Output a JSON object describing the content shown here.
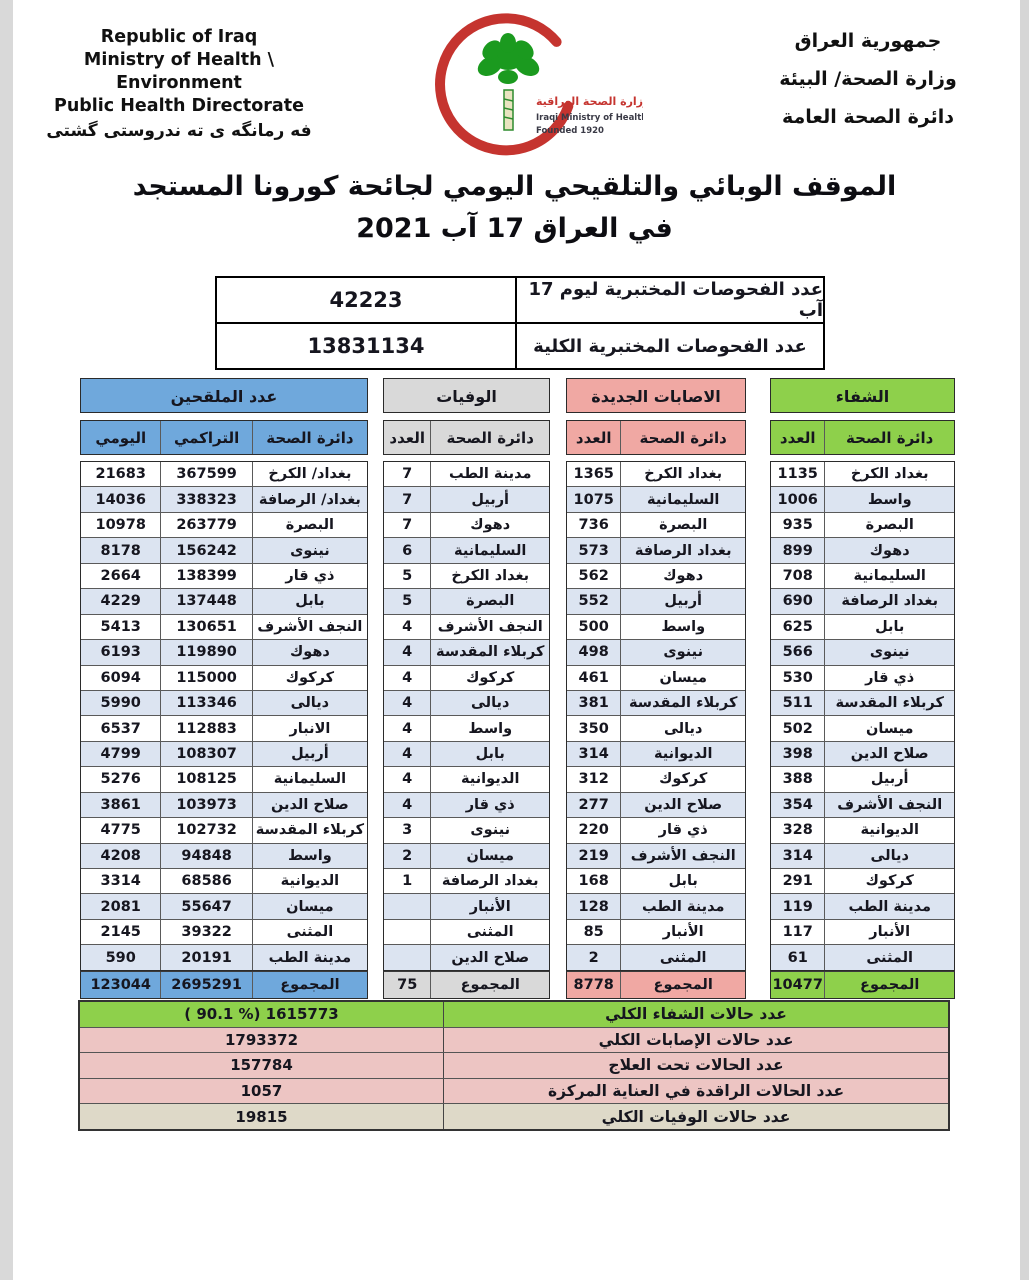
{
  "header_left": {
    "line1": "Republic of Iraq",
    "line2": "Ministry of Health \\ Environment",
    "line3": "Public Health Directorate",
    "line4": "فه رمانگه ی ته ندروستی گشتی"
  },
  "header_right": {
    "line1": "جمهورية العراق",
    "line2": "وزارة الصحة/ البيئة",
    "line3": "دائرة الصحة العامة"
  },
  "logo": {
    "arabic": "وزارة الصحة العراقية",
    "english": "Iraqi Ministry of Health",
    "founded": "Founded 1920"
  },
  "title": {
    "line1": "الموقف الوبائي والتلقيحي اليومي لجائحة كورونا المستجد",
    "line2": "في العراق  17  آب 2021"
  },
  "tests": {
    "rows": [
      {
        "label": "عدد الفحوصات المختبرية  ليوم 17 آب",
        "value": "42223"
      },
      {
        "label": "عدد الفحوصات المختبرية الكلية",
        "value": "13831134"
      }
    ]
  },
  "colors": {
    "blue": "#6fa8dc",
    "light_blue": "#dce4f1",
    "gray": "#d9d9d9",
    "pink": "#f0a8a3",
    "green": "#8ed04b",
    "summary_pink": "#edc5c3",
    "summary_tan": "#ded9c8",
    "crescent_red": "#c5342f",
    "palm_green": "#1b9a1f"
  },
  "tables": {
    "vaccinated": {
      "title": "عدد الملقحين",
      "theme": "blue",
      "columns": [
        "اليومي",
        "التراكمي",
        "دائرة الصحة"
      ],
      "rows": [
        [
          "21683",
          "367599",
          "بغداد/ الكرخ"
        ],
        [
          "14036",
          "338323",
          "بغداد/ الرصافة"
        ],
        [
          "10978",
          "263779",
          "البصرة"
        ],
        [
          "8178",
          "156242",
          "نينوى"
        ],
        [
          "2664",
          "138399",
          "ذي قار"
        ],
        [
          "4229",
          "137448",
          "بابل"
        ],
        [
          "5413",
          "130651",
          "النجف الأشرف"
        ],
        [
          "6193",
          "119890",
          "دهوك"
        ],
        [
          "6094",
          "115000",
          "كركوك"
        ],
        [
          "5990",
          "113346",
          "ديالى"
        ],
        [
          "6537",
          "112883",
          "الانبار"
        ],
        [
          "4799",
          "108307",
          "أربيل"
        ],
        [
          "5276",
          "108125",
          "السليمانية"
        ],
        [
          "3861",
          "103973",
          "صلاح الدين"
        ],
        [
          "4775",
          "102732",
          "كربلاء المقدسة"
        ],
        [
          "4208",
          "94848",
          "واسط"
        ],
        [
          "3314",
          "68586",
          "الديوانية"
        ],
        [
          "2081",
          "55647",
          "ميسان"
        ],
        [
          "2145",
          "39322",
          "المثنى"
        ],
        [
          "590",
          "20191",
          "مدينة الطب"
        ]
      ],
      "total": [
        "123044",
        "2695291",
        "المجموع"
      ]
    },
    "deaths": {
      "title": "الوفيات",
      "theme": "gray",
      "columns": [
        "العدد",
        "دائرة الصحة"
      ],
      "rows": [
        [
          "7",
          "مدينة الطب"
        ],
        [
          "7",
          "أربيل"
        ],
        [
          "7",
          "دهوك"
        ],
        [
          "6",
          "السليمانية"
        ],
        [
          "5",
          "بغداد الكرخ"
        ],
        [
          "5",
          "البصرة"
        ],
        [
          "4",
          "النجف الأشرف"
        ],
        [
          "4",
          "كربلاء المقدسة"
        ],
        [
          "4",
          "كركوك"
        ],
        [
          "4",
          "ديالى"
        ],
        [
          "4",
          "واسط"
        ],
        [
          "4",
          "بابل"
        ],
        [
          "4",
          "الديوانية"
        ],
        [
          "4",
          "ذي قار"
        ],
        [
          "3",
          "نينوى"
        ],
        [
          "2",
          "ميسان"
        ],
        [
          "1",
          "بغداد الرصافة"
        ],
        [
          "",
          "الأنبار"
        ],
        [
          "",
          "المثنى"
        ],
        [
          "",
          "صلاح الدين"
        ]
      ],
      "total": [
        "75",
        "المجموع"
      ]
    },
    "new_cases": {
      "title": "الاصابات الجديدة",
      "theme": "pink",
      "columns": [
        "العدد",
        "دائرة الصحة"
      ],
      "rows": [
        [
          "1365",
          "بغداد الكرخ"
        ],
        [
          "1075",
          "السليمانية"
        ],
        [
          "736",
          "البصرة"
        ],
        [
          "573",
          "بغداد الرصافة"
        ],
        [
          "562",
          "دهوك"
        ],
        [
          "552",
          "أربيل"
        ],
        [
          "500",
          "واسط"
        ],
        [
          "498",
          "نينوى"
        ],
        [
          "461",
          "ميسان"
        ],
        [
          "381",
          "كربلاء المقدسة"
        ],
        [
          "350",
          "ديالى"
        ],
        [
          "314",
          "الديوانية"
        ],
        [
          "312",
          "كركوك"
        ],
        [
          "277",
          "صلاح الدين"
        ],
        [
          "220",
          "ذي قار"
        ],
        [
          "219",
          "النجف الأشرف"
        ],
        [
          "168",
          "بابل"
        ],
        [
          "128",
          "مدينة الطب"
        ],
        [
          "85",
          "الأنبار"
        ],
        [
          "2",
          "المثنى"
        ]
      ],
      "total": [
        "8778",
        "المجموع"
      ]
    },
    "recoveries": {
      "title": "الشفاء",
      "theme": "green",
      "columns": [
        "العدد",
        "دائرة الصحة"
      ],
      "rows": [
        [
          "1135",
          "بغداد الكرخ"
        ],
        [
          "1006",
          "واسط"
        ],
        [
          "935",
          "البصرة"
        ],
        [
          "899",
          "دهوك"
        ],
        [
          "708",
          "السليمانية"
        ],
        [
          "690",
          "بغداد الرصافة"
        ],
        [
          "625",
          "بابل"
        ],
        [
          "566",
          "نينوى"
        ],
        [
          "530",
          "ذي قار"
        ],
        [
          "511",
          "كربلاء المقدسة"
        ],
        [
          "502",
          "ميسان"
        ],
        [
          "398",
          "صلاح الدين"
        ],
        [
          "388",
          "أربيل"
        ],
        [
          "354",
          "النجف الأشرف"
        ],
        [
          "328",
          "الديوانية"
        ],
        [
          "314",
          "ديالى"
        ],
        [
          "291",
          "كركوك"
        ],
        [
          "119",
          "مدينة الطب"
        ],
        [
          "117",
          "الأنبار"
        ],
        [
          "61",
          "المثنى"
        ]
      ],
      "total": [
        "10477",
        "المجموع"
      ]
    }
  },
  "summary": {
    "rows": [
      {
        "label": "عدد حالات الشفاء الكلي",
        "value": "( 90.1 %)  1615773",
        "color": "green"
      },
      {
        "label": "عدد حالات الإصابات الكلي",
        "value": "1793372",
        "color": "summary_pink"
      },
      {
        "label": "عدد الحالات تحت العلاج",
        "value": "157784",
        "color": "summary_pink"
      },
      {
        "label": "عدد الحالات الراقدة في العناية المركزة",
        "value": "1057",
        "color": "summary_pink"
      },
      {
        "label": "عدد حالات الوفيات الكلي",
        "value": "19815",
        "color": "summary_tan"
      }
    ]
  }
}
